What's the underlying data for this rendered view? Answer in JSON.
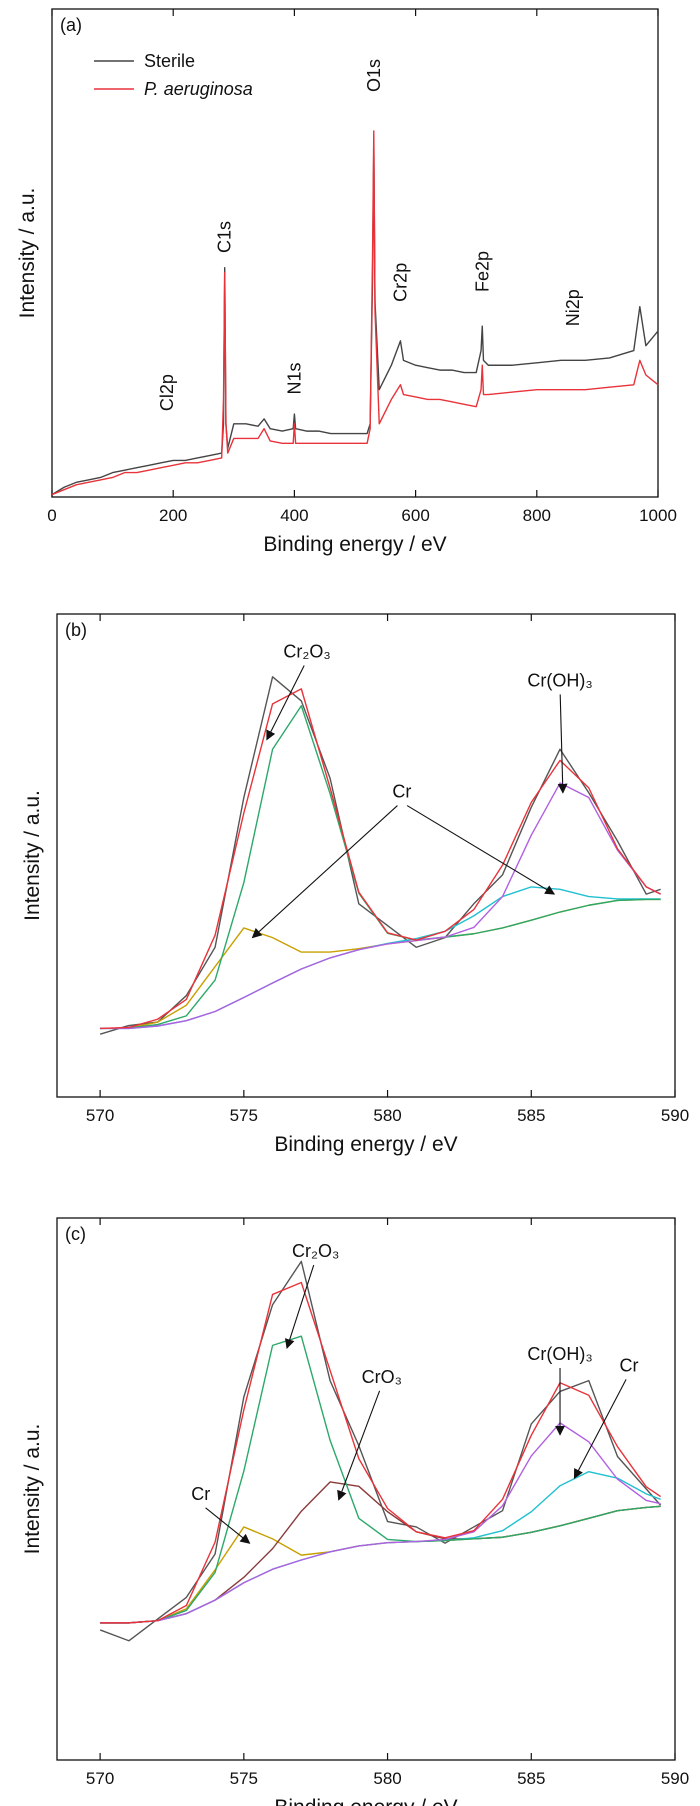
{
  "chart_data": [
    {
      "type": "line",
      "panel_label": "(a)",
      "xlabel": "Binding energy / eV",
      "ylabel": "Intensity / a.u.",
      "xlim": [
        0,
        1000
      ],
      "xticks": [
        0,
        200,
        400,
        600,
        800,
        1000
      ],
      "ylim": [
        0,
        100
      ],
      "legend": "upper left",
      "x": [
        0,
        20,
        40,
        60,
        80,
        100,
        120,
        140,
        160,
        180,
        200,
        220,
        240,
        260,
        280,
        283,
        285,
        287,
        290,
        300,
        320,
        340,
        350,
        360,
        380,
        398,
        400,
        402,
        420,
        440,
        460,
        480,
        500,
        520,
        525,
        529,
        531,
        533,
        540,
        560,
        575,
        580,
        600,
        620,
        640,
        660,
        680,
        700,
        708,
        710,
        712,
        720,
        760,
        800,
        840,
        880,
        920,
        960,
        970,
        980,
        1000
      ],
      "series": [
        {
          "name": "Sterile",
          "color": "#444444",
          "values": [
            0.5,
            2,
            3,
            3.5,
            4,
            5,
            5.5,
            6,
            6.5,
            7,
            7.5,
            7.5,
            8,
            8.5,
            9,
            15,
            47,
            15,
            10,
            15,
            15,
            14.5,
            16,
            14,
            13.5,
            14,
            17,
            14,
            13.5,
            13.5,
            13,
            13,
            13,
            13,
            15,
            45,
            72,
            40,
            22,
            27,
            32,
            28,
            27,
            26.5,
            26,
            26,
            25.5,
            25.5,
            30,
            35,
            28,
            27,
            27,
            27.5,
            28,
            28,
            28.5,
            30,
            39,
            31,
            34
          ]
        },
        {
          "name": "P. aeruginosa",
          "font_style": "italic",
          "color": "#e8333a",
          "values": [
            0.5,
            1.5,
            2.5,
            3,
            3.5,
            4,
            5,
            5,
            5.5,
            6,
            6.5,
            7,
            7,
            7.5,
            8,
            20,
            46,
            15,
            9,
            12,
            12,
            12,
            14,
            11.5,
            11,
            11,
            15,
            11,
            11,
            11,
            11,
            11,
            11,
            11,
            14,
            50,
            75,
            38,
            15,
            20,
            23,
            21,
            20.5,
            20,
            20,
            19.5,
            19,
            18.5,
            22,
            27,
            21,
            21,
            21.5,
            22,
            22,
            22,
            22.5,
            23,
            28,
            25,
            23
          ]
        }
      ],
      "annotations": [
        {
          "text": "Cl2p",
          "x": 190,
          "y": 17.6,
          "rotation": 90
        },
        {
          "text": "C1s",
          "x": 285,
          "y": 50,
          "rotation": 90
        },
        {
          "text": "N1s",
          "x": 400,
          "y": 21,
          "rotation": 90
        },
        {
          "text": "O1s",
          "x": 531,
          "y": 83,
          "rotation": 90
        },
        {
          "text": "Cr2p",
          "x": 575,
          "y": 40,
          "rotation": 90
        },
        {
          "text": "Fe2p",
          "x": 710,
          "y": 42,
          "rotation": 90
        },
        {
          "text": "Ni2p",
          "x": 860,
          "y": 35,
          "rotation": 90
        }
      ]
    },
    {
      "type": "line",
      "panel_label": "(b)",
      "xlabel": "Binding energy / eV",
      "ylabel": "Intensity / a.u.",
      "xlim": [
        568.5,
        590
      ],
      "xticks": [
        570,
        575,
        580,
        585,
        590
      ],
      "ylim": [
        0,
        100
      ],
      "x": [
        570,
        571,
        572,
        573,
        574,
        575,
        576,
        577,
        578,
        579,
        580,
        581,
        582,
        583,
        584,
        585,
        586,
        587,
        588,
        589,
        589.5
      ],
      "series": [
        {
          "color": "#555555",
          "values": [
            13,
            14.8,
            15.5,
            21,
            31,
            62,
            87,
            82,
            66,
            40,
            35.5,
            31,
            33,
            40,
            46,
            60,
            72,
            63,
            53,
            42,
            43
          ]
        },
        {
          "color": "#c8a000",
          "values": [
            14.2,
            14.3,
            15.5,
            19,
            27,
            35,
            33,
            30,
            30,
            30.7,
            31.7,
            32.4,
            33.1,
            33.8,
            35,
            36.6,
            38.3,
            39.7,
            40.7,
            40.9,
            40.9
          ]
        },
        {
          "color": "#20c0d0",
          "values": [
            14.2,
            14.2,
            14.7,
            15.8,
            17.7,
            20.6,
            23.6,
            26.5,
            28.8,
            30.5,
            31.8,
            32.8,
            34.3,
            37.5,
            41.5,
            43.5,
            43,
            41.5,
            41,
            41,
            41
          ]
        },
        {
          "color": "#2ca86a",
          "values": [
            14.2,
            14.3,
            15,
            16.8,
            24.2,
            44.4,
            72,
            81,
            62.8,
            42.2,
            33.9,
            32.5,
            33.1,
            33.8,
            35,
            36.6,
            38.3,
            39.7,
            40.7,
            40.9,
            40.9
          ]
        },
        {
          "color": "#b060e0",
          "values": [
            14.2,
            14.2,
            14.7,
            15.8,
            17.7,
            20.6,
            23.6,
            26.5,
            28.8,
            30.5,
            31.7,
            32.4,
            33.1,
            35.1,
            41.5,
            54.2,
            65,
            62,
            51.1,
            43.5,
            42
          ]
        },
        {
          "color": "#e8333a",
          "values": [
            14.2,
            14.4,
            16.1,
            20.2,
            33.5,
            58.8,
            81.4,
            84.5,
            64,
            42.4,
            34,
            32.5,
            34.3,
            38.8,
            48,
            61,
            69.7,
            64,
            51.4,
            43.5,
            42
          ]
        }
      ],
      "annotations": [
        {
          "text": "Cr₂O₃",
          "x": 577.2,
          "y": 91,
          "arrows": [
            [
              575.8,
              74
            ]
          ]
        },
        {
          "text": "Cr(OH)₃",
          "x": 586,
          "y": 85,
          "arrows": [
            [
              586.1,
              63
            ]
          ]
        },
        {
          "text": "Cr",
          "x": 580.5,
          "y": 62,
          "arrows": [
            [
              575.3,
              33
            ],
            [
              585.8,
              42
            ]
          ]
        }
      ]
    },
    {
      "type": "line",
      "panel_label": "(c)",
      "xlabel": "Binding energy / eV",
      "ylabel": "Intensity / a.u.",
      "xlim": [
        568.5,
        590
      ],
      "xticks": [
        570,
        575,
        580,
        585,
        590
      ],
      "ylim": [
        0,
        100
      ],
      "x": [
        570,
        571,
        572,
        573,
        574,
        575,
        576,
        577,
        578,
        579,
        580,
        581,
        582,
        583,
        584,
        585,
        586,
        587,
        588,
        589,
        589.5
      ],
      "series": [
        {
          "color": "#555555",
          "values": [
            24,
            22,
            26,
            30,
            38,
            67,
            84,
            92,
            70,
            58,
            44,
            43,
            40,
            43,
            46,
            62,
            68,
            70,
            56,
            50,
            47
          ]
        },
        {
          "color": "#c8a000",
          "values": [
            25.3,
            25.3,
            25.7,
            27.9,
            35.1,
            43,
            40.8,
            37.8,
            38.4,
            39.5,
            40.1,
            40.3,
            40.5,
            40.8,
            41.1,
            42,
            43.2,
            44.6,
            46,
            46.6,
            46.8
          ]
        },
        {
          "color": "#8b3a3a",
          "values": [
            25.3,
            25.3,
            25.7,
            27,
            29.5,
            33.7,
            39,
            45.9,
            51.3,
            50.5,
            45.8,
            42.1,
            40.8,
            40.8,
            41.1,
            42,
            43.2,
            44.6,
            46,
            46.6,
            46.8
          ]
        },
        {
          "color": "#20c0d0",
          "values": [
            25.3,
            25.3,
            25.7,
            27,
            29.5,
            32.7,
            35.2,
            36.9,
            38.4,
            39.5,
            40.1,
            40.3,
            40.5,
            41,
            42.3,
            45.8,
            50.6,
            53.2,
            52,
            49.1,
            48.1
          ]
        },
        {
          "color": "#2ca86a",
          "values": [
            25.3,
            25.3,
            25.7,
            27.6,
            34.6,
            53.3,
            76.5,
            78.2,
            59,
            44.6,
            40.7,
            40.3,
            40.5,
            40.8,
            41.1,
            42,
            43.2,
            44.6,
            46,
            46.6,
            46.8
          ]
        },
        {
          "color": "#b060e0",
          "values": [
            25.3,
            25.3,
            25.7,
            27,
            29.5,
            32.7,
            35.2,
            36.9,
            38.4,
            39.5,
            40.1,
            40.3,
            40.7,
            42.1,
            46.9,
            56.1,
            62.2,
            58.7,
            51.8,
            47.9,
            47.3
          ]
        },
        {
          "color": "#e8333a",
          "values": [
            25.3,
            25.3,
            25.7,
            28.5,
            40.2,
            64.6,
            85.9,
            88.1,
            71.9,
            55.6,
            46.4,
            42.1,
            41,
            42.3,
            48.1,
            59.9,
            69.6,
            67.3,
            57.8,
            50.4,
            48.6
          ]
        }
      ],
      "annotations": [
        {
          "text": "Cr₂O₃",
          "x": 577.5,
          "y": 92.8,
          "arrows": [
            [
              576.5,
              76
            ]
          ]
        },
        {
          "text": "CrO₃",
          "x": 579.8,
          "y": 69.6,
          "arrows": [
            [
              578.3,
              48
            ]
          ]
        },
        {
          "text": "Cr",
          "x": 573.5,
          "y": 48,
          "arrows": [
            [
              575.2,
              40
            ]
          ]
        },
        {
          "text": "Cr(OH)₃",
          "x": 586,
          "y": 73.8,
          "arrows": [
            [
              586,
              60
            ]
          ]
        },
        {
          "text": "Cr",
          "x": 588.4,
          "y": 71.7,
          "arrows": [
            [
              586.5,
              52
            ]
          ]
        }
      ]
    }
  ]
}
